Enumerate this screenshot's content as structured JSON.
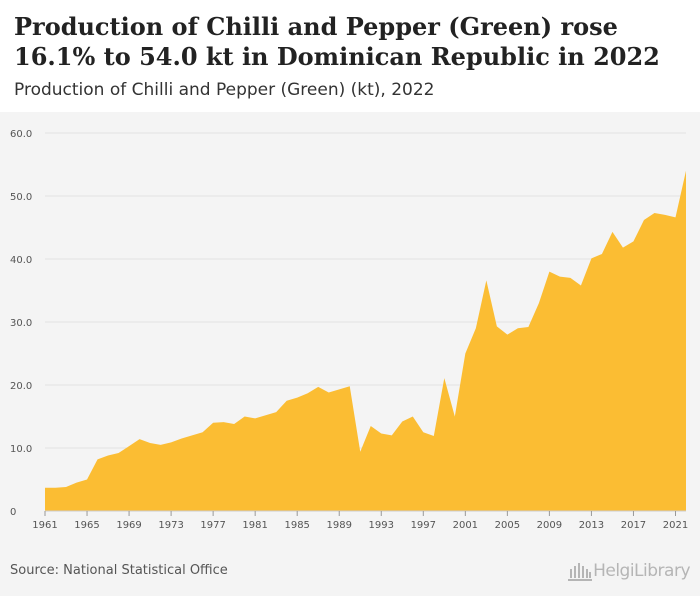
{
  "header": {
    "title": "Production of Chilli and Pepper (Green) rose 16.1% to 54.0 kt in Dominican Republic in 2022",
    "subtitle": "Production of Chilli and Pepper (Green) (kt), 2022"
  },
  "footer": {
    "source": "Source: National Statistical Office",
    "logo_text": "HelgiLibrary",
    "logo_icon": "library-building-icon"
  },
  "colors": {
    "area": "#fbbd33",
    "grid": "#e2e2e2",
    "plot_background": "#f4f4f4"
  },
  "chart_data": {
    "type": "area",
    "title": "Production of Chilli and Pepper (Green) (kt), 2022",
    "xlabel": "",
    "ylabel": "",
    "ylim": [
      0,
      60
    ],
    "yticks": [
      "0",
      "10.0",
      "20.0",
      "30.0",
      "40.0",
      "50.0",
      "60.0"
    ],
    "xticks": [
      1961,
      1965,
      1969,
      1973,
      1977,
      1981,
      1985,
      1989,
      1993,
      1997,
      2001,
      2005,
      2009,
      2013,
      2017,
      2021
    ],
    "grid": true,
    "x": [
      1961,
      1962,
      1963,
      1964,
      1965,
      1966,
      1967,
      1968,
      1969,
      1970,
      1971,
      1972,
      1973,
      1974,
      1975,
      1976,
      1977,
      1978,
      1979,
      1980,
      1981,
      1982,
      1983,
      1984,
      1985,
      1986,
      1987,
      1988,
      1989,
      1990,
      1991,
      1992,
      1993,
      1994,
      1995,
      1996,
      1997,
      1998,
      1999,
      2000,
      2001,
      2002,
      2003,
      2004,
      2005,
      2006,
      2007,
      2008,
      2009,
      2010,
      2011,
      2012,
      2013,
      2014,
      2015,
      2016,
      2017,
      2018,
      2019,
      2020,
      2021,
      2022
    ],
    "values": [
      3.7,
      3.7,
      3.8,
      4.5,
      5.0,
      8.2,
      8.8,
      9.2,
      10.3,
      11.4,
      10.8,
      10.5,
      10.9,
      11.5,
      12.0,
      12.5,
      14.0,
      14.1,
      13.8,
      15.0,
      14.7,
      15.2,
      15.7,
      17.5,
      18.0,
      18.7,
      19.7,
      18.8,
      19.3,
      19.8,
      9.4,
      13.5,
      12.3,
      12.0,
      14.2,
      15.0,
      12.5,
      11.9,
      21.1,
      15.0,
      25.0,
      29.0,
      36.6,
      29.3,
      28.0,
      29.0,
      29.2,
      33.0,
      38.0,
      37.2,
      37.0,
      35.8,
      40.1,
      40.8,
      44.3,
      41.8,
      42.8,
      46.2,
      47.3,
      47.0,
      46.6,
      54.0
    ]
  }
}
